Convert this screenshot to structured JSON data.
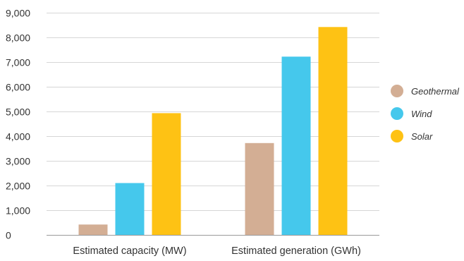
{
  "chart_data": {
    "type": "bar",
    "title": "",
    "xlabel": "",
    "ylabel": "",
    "categories": [
      "Estimated capacity (MW)",
      "Estimated generation (GWh)"
    ],
    "series": [
      {
        "name": "Geothermal",
        "color": "#d3ae94",
        "values": [
          420,
          3720
        ]
      },
      {
        "name": "Wind",
        "color": "#45c8ec",
        "values": [
          2100,
          7220
        ]
      },
      {
        "name": "Solar",
        "color": "#fec214",
        "values": [
          4930,
          8420
        ]
      }
    ],
    "ylim": [
      0,
      9000
    ],
    "yticks": [
      0,
      1000,
      2000,
      3000,
      4000,
      5000,
      6000,
      7000,
      8000,
      9000
    ],
    "ytick_labels": [
      "0",
      "1,000",
      "2,000",
      "3,000",
      "4,000",
      "5,000",
      "6,000",
      "7,000",
      "8,000",
      "9,000"
    ],
    "grid": true,
    "legend_position": "right"
  }
}
